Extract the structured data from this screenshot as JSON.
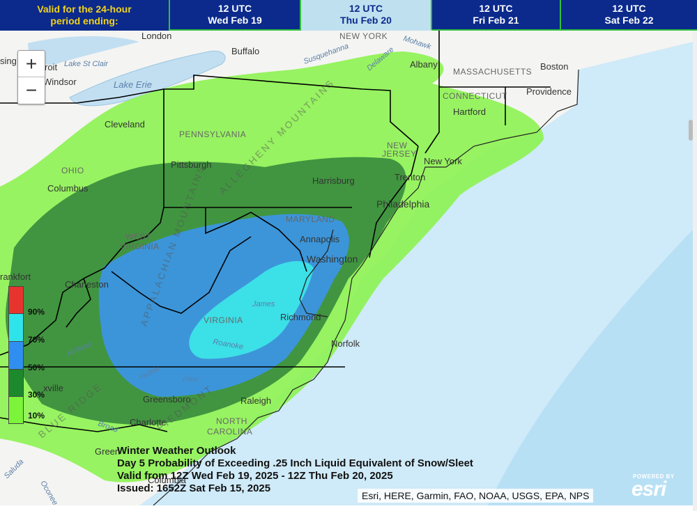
{
  "header": {
    "period_label_line1": "Valid for the 24-hour",
    "period_label_line2": "period ending:",
    "tabs": [
      {
        "time": "12 UTC",
        "date": "Wed Feb 19",
        "active": false
      },
      {
        "time": "12 UTC",
        "date": "Thu Feb 20",
        "active": true
      },
      {
        "time": "12 UTC",
        "date": "Fri Feb 21",
        "active": false
      },
      {
        "time": "12 UTC",
        "date": "Sat Feb 22",
        "active": false
      }
    ]
  },
  "zoom": {
    "in": "+",
    "out": "−"
  },
  "legend": {
    "ticks": [
      "90%",
      "70%",
      "50%",
      "30%",
      "10%"
    ],
    "colors": [
      "#e8342f",
      "#2fe3ea",
      "#2f8ff0",
      "#1c8a2c",
      "#7cf43a"
    ]
  },
  "map": {
    "colors": {
      "ocean": "#cfeaf8",
      "land": "#f4f4f2",
      "lake": "#c2dff2",
      "prob_10": "#8ef255",
      "prob_30": "#3a8d3e",
      "prob_50": "#3c95e6",
      "prob_70": "#3de6e8"
    },
    "places": [
      "London",
      "Buffalo",
      "Albany",
      "Boston",
      "Providence",
      "Hartford",
      "New York",
      "Trenton",
      "Philadelphia",
      "Harrisburg",
      "Pittsburgh",
      "Cleveland",
      "Columbus",
      "Charleston",
      "Annapolis",
      "Washington",
      "Richmond",
      "Norfolk",
      "Raleigh",
      "Greensboro",
      "Charlotte",
      "Columbia",
      "Windsor",
      "Frankfort",
      "Knoxville",
      "Detroit",
      "Lansing",
      "Greenville"
    ],
    "regions": [
      "NEW YORK",
      "MASSACHUSETTS",
      "CONNECTICUT",
      "NEW JERSEY",
      "PENNSYLVANIA",
      "OHIO",
      "MARYLAND",
      "WEST VIRGINIA",
      "VIRGINIA",
      "NORTH CAROLINA"
    ],
    "features": [
      "Lake Erie",
      "Lake St Clair",
      "Mohawk",
      "Susquehanna",
      "Delaware",
      "James",
      "Roanoke",
      "Haw",
      "Yadkin",
      "Holston",
      "Broad",
      "Oconee",
      "Saluda",
      "ALLEGHENY MOUNTAINS",
      "APPALACHIAN MOUNTAINS",
      "BLUE RIDGE",
      "PIEDMONT"
    ]
  },
  "info": {
    "line1": "Winter Weather Outlook",
    "line2": "Day 5 Probability of Exceeding .25 Inch Liquid Equivalent of Snow/Sleet",
    "line3": "Valid from 12Z Wed Feb 19, 2025 - 12Z Thu Feb 20, 2025",
    "line4": "Issued: 1652Z Sat Feb 15, 2025"
  },
  "attribution": "Esri, HERE, Garmin, FAO, NOAA, USGS, EPA, NPS",
  "esri": {
    "powered": "POWERED BY",
    "logo": "esri"
  }
}
